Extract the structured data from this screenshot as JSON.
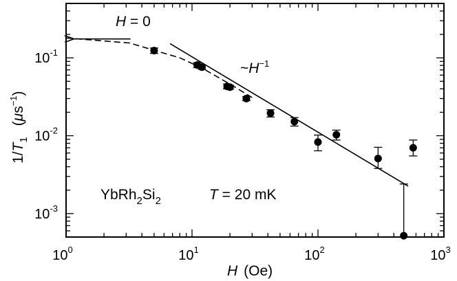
{
  "chart_data": {
    "type": "scatter",
    "xscale": "log",
    "yscale": "log",
    "xlim": [
      1,
      1000
    ],
    "ylim": [
      0.0005,
      0.5
    ],
    "grid": false,
    "xlabel": {
      "var": "H",
      "unit": "(Oe)"
    },
    "ylabel": {
      "prefix": "1/",
      "var": "T",
      "sub": "1",
      "unit_open": "(",
      "mu": "μ",
      "unit_s": "s",
      "exp": "−1",
      "unit_close": ")"
    },
    "x_ticks": [
      {
        "value": 1,
        "base": "10",
        "exp": "0"
      },
      {
        "value": 10,
        "base": "10",
        "exp": "1"
      },
      {
        "value": 100,
        "base": "10",
        "exp": "2"
      },
      {
        "value": 1000,
        "base": "10",
        "exp": "3"
      }
    ],
    "y_ticks": [
      {
        "value": 0.001,
        "base": "10",
        "exp": "-3"
      },
      {
        "value": 0.01,
        "base": "10",
        "exp": "-2"
      },
      {
        "value": 0.1,
        "base": "10",
        "exp": "-1"
      }
    ],
    "series": [
      {
        "kind": "points",
        "x": [
          5,
          11,
          12,
          19,
          20,
          27,
          42,
          65,
          100,
          140,
          300,
          480,
          570
        ],
        "y": [
          0.124,
          0.081,
          0.076,
          0.043,
          0.042,
          0.03,
          0.0195,
          0.0152,
          0.0083,
          0.0103,
          0.0051,
          0.00052,
          0.007
        ],
        "ylo": [
          0.114,
          0.075,
          0.071,
          0.04,
          0.0395,
          0.0282,
          0.0174,
          0.0133,
          0.0064,
          0.0088,
          0.0038,
          0.00052,
          0.0055
        ],
        "yhi": [
          0.134,
          0.087,
          0.081,
          0.046,
          0.0445,
          0.0318,
          0.0216,
          0.0171,
          0.0102,
          0.0118,
          0.0071,
          0.0024,
          0.0088
        ]
      },
      {
        "kind": "solid-line",
        "x": [
          6.7,
          520
        ],
        "y": [
          0.152,
          0.00225
        ]
      },
      {
        "kind": "dashed-line",
        "x": [
          1,
          3.2,
          5,
          8,
          12,
          20,
          30
        ],
        "y": [
          0.18,
          0.155,
          0.125,
          0.1,
          0.074,
          0.046,
          0.031
        ]
      }
    ],
    "annotations": {
      "arrow_label": {
        "var": "H",
        "rest": " = 0"
      },
      "arrow": {
        "x_from": 3.25,
        "x_to": 1.1,
        "y": 0.175
      },
      "powerlaw": {
        "prefix": "~",
        "var": "H",
        "exp": "−1"
      },
      "compound": {
        "a": "YbRh",
        "s1": "2",
        "b": "Si",
        "s2": "2"
      },
      "temperature": {
        "var": "T",
        "rest": " = 20 mK"
      }
    }
  }
}
